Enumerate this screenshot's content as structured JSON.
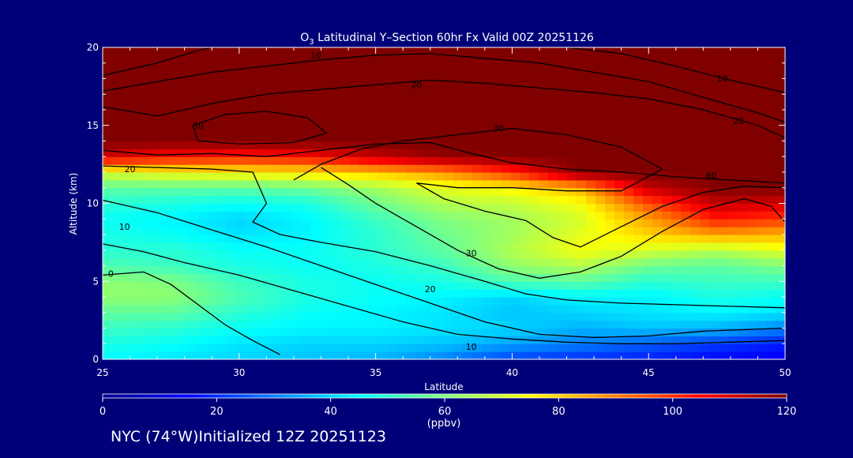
{
  "chart_data": {
    "type": "heatmap",
    "title": {
      "prefix": "O",
      "subscript": "3",
      "rest": " Latitudinal Y–Section 60hr  Fx Valid 00Z 20251126"
    },
    "xlabel": "Latitude",
    "ylabel": "Altitude (km)",
    "xlim": [
      25,
      50
    ],
    "ylim": [
      0,
      20
    ],
    "x_ticks": [
      25,
      30,
      35,
      40,
      45,
      50
    ],
    "y_ticks": [
      0,
      5,
      10,
      15,
      20
    ],
    "colorbar": {
      "min": 0,
      "max": 120,
      "ticks": [
        0,
        20,
        40,
        60,
        80,
        100,
        120
      ],
      "unit_label": "(ppbv)",
      "colormap": "jet"
    },
    "field_grid": {
      "x": [
        25,
        27.5,
        30,
        32.5,
        35,
        37.5,
        40,
        42.5,
        45,
        47.5,
        50
      ],
      "y": [
        0,
        1,
        2,
        3,
        4,
        5,
        6,
        7,
        8,
        9,
        10,
        11,
        12,
        13,
        14,
        15,
        16,
        17,
        18,
        19,
        20
      ],
      "values": [
        [
          45,
          42,
          40,
          38,
          36,
          30,
          22,
          20,
          18,
          15,
          14
        ],
        [
          48,
          46,
          42,
          40,
          40,
          38,
          34,
          30,
          26,
          22,
          18
        ],
        [
          52,
          50,
          46,
          44,
          44,
          42,
          40,
          36,
          38,
          36,
          30
        ],
        [
          56,
          56,
          50,
          46,
          44,
          42,
          38,
          40,
          42,
          44,
          42
        ],
        [
          62,
          62,
          54,
          48,
          46,
          44,
          40,
          44,
          44,
          48,
          46
        ],
        [
          62,
          60,
          52,
          48,
          46,
          48,
          54,
          56,
          50,
          52,
          52
        ],
        [
          54,
          52,
          48,
          46,
          48,
          52,
          62,
          66,
          58,
          56,
          60
        ],
        [
          50,
          50,
          46,
          46,
          50,
          56,
          66,
          74,
          70,
          66,
          72
        ],
        [
          48,
          46,
          42,
          44,
          50,
          58,
          64,
          72,
          80,
          86,
          84
        ],
        [
          46,
          44,
          40,
          44,
          52,
          60,
          64,
          70,
          86,
          102,
          98
        ],
        [
          50,
          48,
          46,
          48,
          58,
          66,
          68,
          74,
          96,
          112,
          110
        ],
        [
          56,
          56,
          56,
          58,
          64,
          72,
          76,
          84,
          112,
          120,
          120
        ],
        [
          70,
          74,
          76,
          78,
          82,
          88,
          100,
          120,
          120,
          120,
          120
        ],
        [
          110,
          104,
          102,
          104,
          112,
          118,
          120,
          120,
          120,
          120,
          120
        ],
        [
          120,
          120,
          120,
          120,
          120,
          120,
          120,
          120,
          120,
          120,
          120
        ],
        [
          120,
          120,
          120,
          120,
          120,
          120,
          120,
          120,
          120,
          120,
          120
        ],
        [
          120,
          120,
          120,
          120,
          120,
          120,
          120,
          120,
          120,
          120,
          120
        ],
        [
          120,
          120,
          120,
          120,
          120,
          120,
          120,
          120,
          120,
          120,
          120
        ],
        [
          120,
          120,
          120,
          120,
          120,
          120,
          120,
          120,
          120,
          120,
          120
        ],
        [
          120,
          120,
          120,
          120,
          120,
          120,
          120,
          120,
          120,
          120,
          120
        ],
        [
          120,
          120,
          120,
          120,
          120,
          120,
          120,
          120,
          120,
          120,
          120
        ]
      ]
    },
    "contour_lines": [
      {
        "label": "0",
        "label_at": [
          25.3,
          5.5
        ],
        "points": [
          [
            25,
            5.4
          ],
          [
            26.5,
            5.6
          ],
          [
            27.5,
            4.8
          ],
          [
            28.5,
            3.5
          ],
          [
            29.5,
            2.2
          ],
          [
            30.5,
            1.2
          ],
          [
            31.5,
            0.3
          ]
        ]
      },
      {
        "label": "10",
        "label_at": [
          25.8,
          8.5
        ],
        "points": [
          [
            25,
            7.4
          ],
          [
            26.5,
            6.9
          ],
          [
            28,
            6.2
          ],
          [
            30,
            5.4
          ],
          [
            32,
            4.4
          ],
          [
            34,
            3.4
          ],
          [
            36,
            2.4
          ],
          [
            38,
            1.6
          ],
          [
            40,
            1.3
          ],
          [
            42,
            1.1
          ],
          [
            44,
            1.0
          ],
          [
            46,
            1.0
          ],
          [
            48,
            1.1
          ],
          [
            50,
            1.2
          ]
        ]
      },
      {
        "label": "10",
        "label_at": [
          38.5,
          0.8
        ],
        "points": [
          [
            25,
            10.2
          ],
          [
            27,
            9.4
          ],
          [
            29,
            8.3
          ],
          [
            31,
            7.2
          ],
          [
            33,
            6.0
          ],
          [
            35,
            4.8
          ],
          [
            37,
            3.6
          ],
          [
            39,
            2.4
          ],
          [
            41,
            1.6
          ],
          [
            43,
            1.4
          ],
          [
            45,
            1.5
          ],
          [
            47,
            1.8
          ],
          [
            50,
            2.0
          ]
        ]
      },
      {
        "label": "20",
        "label_at": [
          26.0,
          12.2
        ],
        "points": [
          [
            25,
            12.4
          ],
          [
            27,
            12.3
          ],
          [
            29,
            12.2
          ],
          [
            30.5,
            12.0
          ],
          [
            31,
            10.0
          ],
          [
            30.5,
            8.8
          ],
          [
            31.5,
            8.0
          ],
          [
            33,
            7.5
          ],
          [
            35,
            6.9
          ],
          [
            37,
            6.0
          ],
          [
            39,
            5.0
          ],
          [
            40.5,
            4.2
          ],
          [
            42,
            3.8
          ],
          [
            44,
            3.6
          ],
          [
            46,
            3.5
          ],
          [
            48,
            3.4
          ],
          [
            50,
            3.3
          ]
        ]
      },
      {
        "label": "20",
        "label_at": [
          37.0,
          4.5
        ],
        "points": [
          [
            33,
            12.3
          ],
          [
            34,
            11.2
          ],
          [
            35,
            10.0
          ],
          [
            36.5,
            8.5
          ],
          [
            38,
            7.0
          ],
          [
            39.5,
            5.8
          ],
          [
            41,
            5.2
          ],
          [
            42.5,
            5.6
          ],
          [
            44,
            6.6
          ],
          [
            45.5,
            8.2
          ],
          [
            47,
            9.6
          ],
          [
            48.5,
            10.3
          ],
          [
            49.5,
            9.8
          ],
          [
            50,
            8.8
          ]
        ]
      },
      {
        "label": "30",
        "label_at": [
          38.5,
          6.8
        ],
        "points": [
          [
            36.5,
            11.3
          ],
          [
            37.5,
            10.3
          ],
          [
            39,
            9.5
          ],
          [
            40.5,
            8.9
          ],
          [
            41.5,
            7.8
          ],
          [
            42.5,
            7.2
          ],
          [
            44,
            8.5
          ],
          [
            45.5,
            9.8
          ],
          [
            47,
            10.7
          ],
          [
            48.5,
            11.1
          ],
          [
            50,
            11.0
          ]
        ]
      },
      {
        "label": "30",
        "label_at": [
          39.5,
          14.8
        ],
        "points": [
          [
            32,
            11.5
          ],
          [
            33,
            12.5
          ],
          [
            34.5,
            13.5
          ],
          [
            36,
            14.0
          ],
          [
            38,
            14.4
          ],
          [
            40,
            14.8
          ],
          [
            42,
            14.4
          ],
          [
            44,
            13.6
          ],
          [
            45.5,
            12.2
          ],
          [
            44,
            10.8
          ],
          [
            42,
            10.8
          ],
          [
            40,
            11.0
          ],
          [
            38,
            11.0
          ],
          [
            36.5,
            11.3
          ]
        ]
      },
      {
        "label": "30",
        "label_at": [
          28.5,
          15.0
        ],
        "points": [
          [
            28.5,
            14.0
          ],
          [
            30,
            13.8
          ],
          [
            32,
            13.9
          ],
          [
            33.2,
            14.5
          ],
          [
            32.5,
            15.5
          ],
          [
            31,
            15.9
          ],
          [
            29.5,
            15.7
          ],
          [
            28.3,
            15.0
          ],
          [
            28.5,
            14.0
          ]
        ]
      },
      {
        "label": "60",
        "label_at": [
          47.3,
          11.8
        ],
        "points": [
          [
            25,
            13.4
          ],
          [
            27,
            13.1
          ],
          [
            29,
            13.2
          ],
          [
            31,
            13.0
          ],
          [
            33,
            13.4
          ],
          [
            35,
            13.8
          ],
          [
            37,
            13.9
          ],
          [
            38.5,
            13.2
          ],
          [
            40,
            12.6
          ],
          [
            42,
            12.2
          ],
          [
            44,
            12.0
          ],
          [
            46,
            11.7
          ],
          [
            48,
            11.5
          ],
          [
            50,
            11.3
          ]
        ]
      },
      {
        "label": "20",
        "label_at": [
          36.5,
          17.6
        ],
        "points": [
          [
            25,
            16.2
          ],
          [
            27,
            15.6
          ],
          [
            29,
            16.4
          ],
          [
            31,
            17.0
          ],
          [
            33,
            17.3
          ],
          [
            35,
            17.6
          ],
          [
            37,
            17.9
          ],
          [
            39,
            17.7
          ],
          [
            41,
            17.4
          ],
          [
            43,
            17.1
          ],
          [
            45,
            16.7
          ],
          [
            47,
            16.0
          ],
          [
            49,
            15.0
          ],
          [
            50,
            14.2
          ]
        ]
      },
      {
        "label": "20",
        "label_at": [
          48.3,
          15.3
        ],
        "points": [
          [
            25,
            17.2
          ],
          [
            27,
            17.8
          ],
          [
            29,
            18.4
          ],
          [
            31,
            18.8
          ],
          [
            33,
            19.2
          ],
          [
            35,
            19.5
          ],
          [
            37,
            19.6
          ],
          [
            39,
            19.3
          ],
          [
            41,
            19.0
          ],
          [
            43,
            18.4
          ],
          [
            45,
            17.8
          ],
          [
            47,
            16.8
          ],
          [
            49,
            15.8
          ],
          [
            50,
            15.2
          ]
        ]
      },
      {
        "label": "10",
        "label_at": [
          32.8,
          19.5
        ],
        "points": [
          [
            25,
            18.2
          ],
          [
            27,
            19.0
          ],
          [
            28.5,
            19.8
          ],
          [
            29,
            20.0
          ]
        ]
      },
      {
        "label": "10",
        "label_at": [
          47.7,
          18.0
        ],
        "points": [
          [
            42,
            20.0
          ],
          [
            44,
            19.6
          ],
          [
            46,
            18.8
          ],
          [
            48,
            17.9
          ],
          [
            50,
            17.1
          ]
        ]
      }
    ]
  },
  "footer": {
    "text": "NYC (74°W)Initialized 12Z 20251123"
  }
}
